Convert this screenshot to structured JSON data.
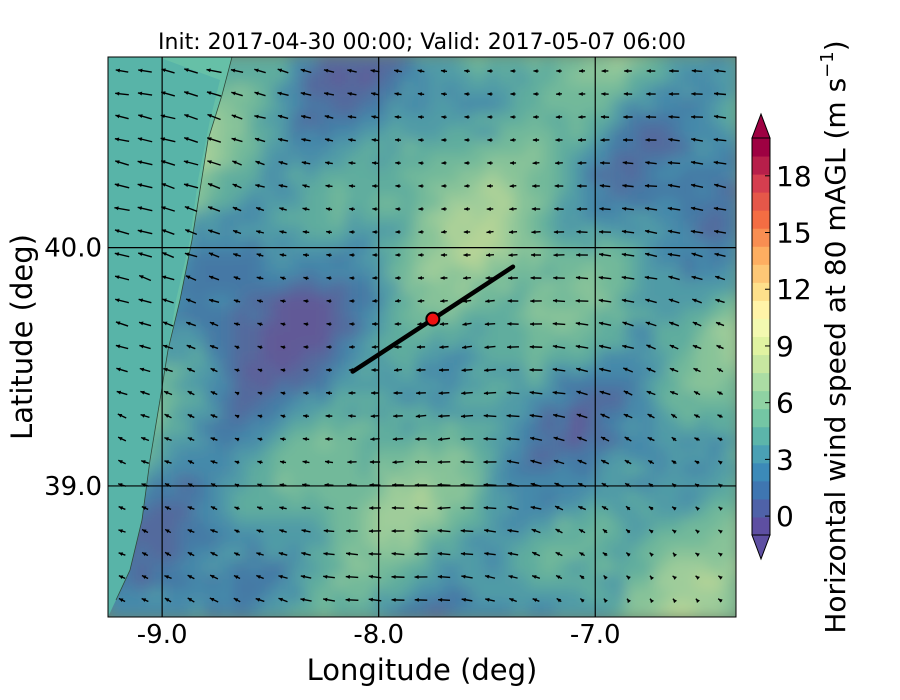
{
  "title": "Init: 2017-04-30 00:00; Valid: 2017-05-07 06:00",
  "map": {
    "lon_range": [
      -9.25,
      -6.35
    ],
    "lat_range": [
      38.45,
      40.8
    ],
    "xlabel": "Longitude (deg)",
    "ylabel": "Latitude (deg)",
    "x_ticks": [
      {
        "value": -9.0,
        "label": "-9.0"
      },
      {
        "value": -8.0,
        "label": "-8.0"
      },
      {
        "value": -7.0,
        "label": "-7.0"
      }
    ],
    "y_ticks": [
      {
        "value": 39.0,
        "label": "39.0"
      },
      {
        "value": 40.0,
        "label": "40.0"
      }
    ],
    "gridlines": true,
    "field": "horizontal wind speed with wind vector arrows",
    "cross_section_line": {
      "start": [
        -8.12,
        39.48
      ],
      "end": [
        -7.38,
        39.92
      ],
      "color": "#000000"
    },
    "site_marker": {
      "lon": -7.75,
      "lat": 39.7,
      "fill": "#ee1111",
      "edge": "#000000"
    }
  },
  "colorbar": {
    "label_main": "Horizontal wind speed at 80 mAGL (m s",
    "label_exp": "−1",
    "label_close": ")",
    "min": -1,
    "max": 20,
    "extend": "both",
    "ticks": [
      {
        "value": 0,
        "label": "0"
      },
      {
        "value": 3,
        "label": "3"
      },
      {
        "value": 6,
        "label": "6"
      },
      {
        "value": 9,
        "label": "9"
      },
      {
        "value": 12,
        "label": "12"
      },
      {
        "value": 15,
        "label": "15"
      },
      {
        "value": 18,
        "label": "18"
      }
    ],
    "colors": [
      "#5e4fa2",
      "#4f62a8",
      "#3f76b1",
      "#3c8ab8",
      "#4aa0b4",
      "#5cb5aa",
      "#74c6a4",
      "#8fd2a3",
      "#abdda4",
      "#c7e7a0",
      "#e0f3a1",
      "#f3f9b0",
      "#fff3a8",
      "#fee08b",
      "#fdc776",
      "#fdae61",
      "#f88e52",
      "#f46d43",
      "#e55749",
      "#d53e4f",
      "#b71f4a",
      "#9e0142"
    ],
    "under_color": "#5e4fa2",
    "over_color": "#9e0142"
  }
}
